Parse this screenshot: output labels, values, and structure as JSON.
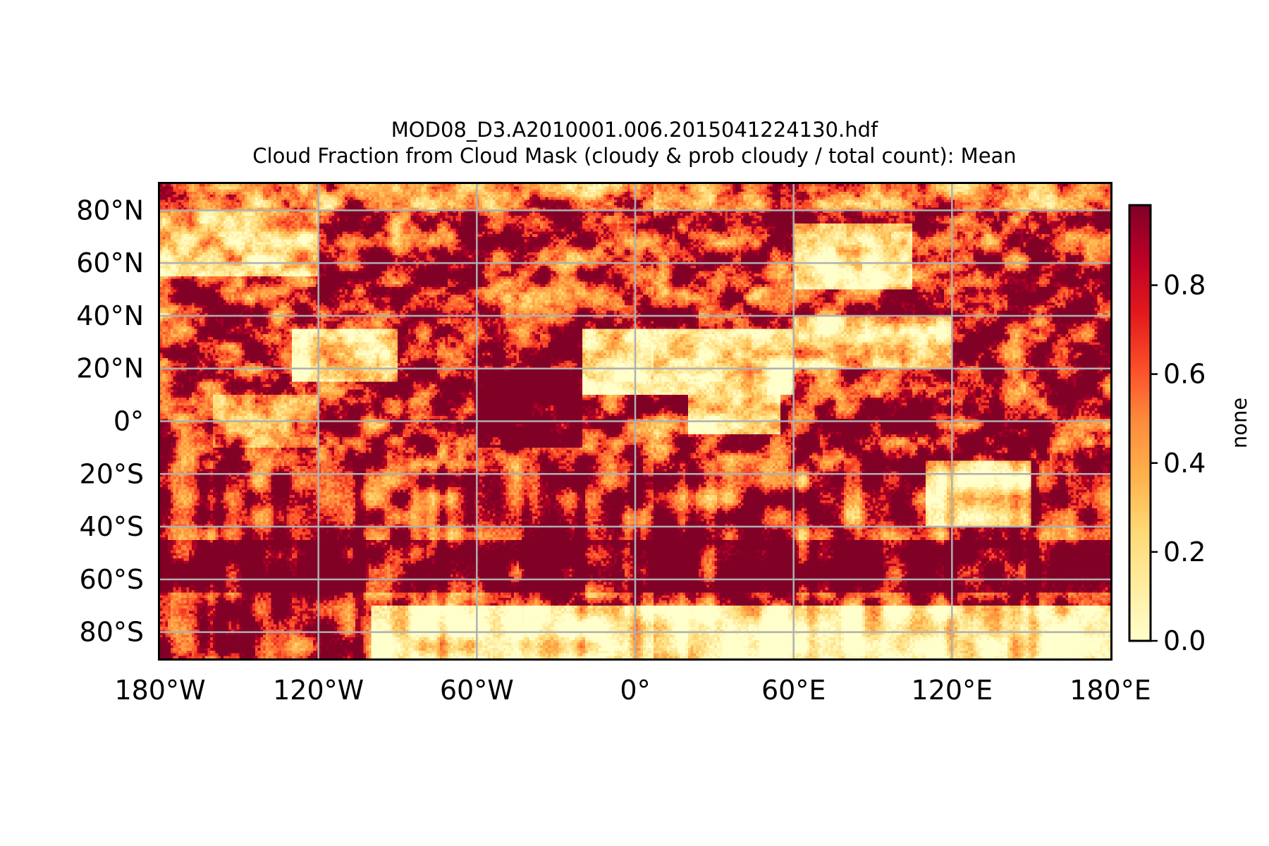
{
  "figure": {
    "title_line1": "MOD08_D3.A2010001.006.2015041224130.hdf",
    "title_line2": "Cloud Fraction from Cloud Mask (cloudy & prob cloudy / total count): Mean"
  },
  "chart_data": {
    "type": "heatmap",
    "projection": "plate carree (equirectangular)",
    "title": "MOD08_D3.A2010001.006.2015041224130.hdf\nCloud Fraction from Cloud Mask (cloudy & prob cloudy / total count): Mean",
    "xlim": [
      -180,
      180
    ],
    "ylim": [
      -90,
      90
    ],
    "grid": true,
    "x_ticks": [
      {
        "value": -180,
        "label": "180°W"
      },
      {
        "value": -120,
        "label": "120°W"
      },
      {
        "value": -60,
        "label": "60°W"
      },
      {
        "value": 0,
        "label": "0°"
      },
      {
        "value": 60,
        "label": "60°E"
      },
      {
        "value": 120,
        "label": "120°E"
      },
      {
        "value": 180,
        "label": "180°E"
      }
    ],
    "y_ticks": [
      {
        "value": 80,
        "label": "80°N"
      },
      {
        "value": 60,
        "label": "60°N"
      },
      {
        "value": 40,
        "label": "40°N"
      },
      {
        "value": 20,
        "label": "20°N"
      },
      {
        "value": 0,
        "label": "0°"
      },
      {
        "value": -20,
        "label": "20°S"
      },
      {
        "value": -40,
        "label": "40°S"
      },
      {
        "value": -60,
        "label": "60°S"
      },
      {
        "value": -80,
        "label": "80°S"
      }
    ],
    "colorbar": {
      "label": "none",
      "range": [
        0.0,
        0.98
      ],
      "ticks": [
        {
          "value": 0.0,
          "label": "0.0"
        },
        {
          "value": 0.2,
          "label": "0.2"
        },
        {
          "value": 0.4,
          "label": "0.4"
        },
        {
          "value": 0.6,
          "label": "0.6"
        },
        {
          "value": 0.8,
          "label": "0.8"
        }
      ],
      "colormap": "YlOrRd",
      "colormap_stops": [
        "#ffffcc",
        "#ffeda0",
        "#fed976",
        "#feb24c",
        "#fd8d3c",
        "#fc4e2a",
        "#e31a1c",
        "#bd0026",
        "#800026"
      ]
    },
    "regions": [
      {
        "lon": [
          -180,
          180
        ],
        "lat": [
          80,
          90
        ],
        "mean": 0.45
      },
      {
        "lon": [
          -180,
          -120
        ],
        "lat": [
          55,
          80
        ],
        "mean": 0.25
      },
      {
        "lon": [
          -160,
          -120
        ],
        "lat": [
          -10,
          10
        ],
        "mean": 0.45
      },
      {
        "lon": [
          -130,
          -90
        ],
        "lat": [
          15,
          35
        ],
        "mean": 0.2
      },
      {
        "lon": [
          -60,
          -20
        ],
        "lat": [
          -10,
          20
        ],
        "mean": 0.95
      },
      {
        "lon": [
          -20,
          60
        ],
        "lat": [
          10,
          35
        ],
        "mean": 0.08
      },
      {
        "lon": [
          20,
          55
        ],
        "lat": [
          -5,
          20
        ],
        "mean": 0.12
      },
      {
        "lon": [
          60,
          105
        ],
        "lat": [
          50,
          75
        ],
        "mean": 0.2
      },
      {
        "lon": [
          60,
          120
        ],
        "lat": [
          20,
          40
        ],
        "mean": 0.25
      },
      {
        "lon": [
          110,
          150
        ],
        "lat": [
          -40,
          -15
        ],
        "mean": 0.18
      },
      {
        "lon": [
          -180,
          180
        ],
        "lat": [
          -65,
          -45
        ],
        "mean": 0.95
      },
      {
        "lon": [
          -100,
          180
        ],
        "lat": [
          -90,
          -70
        ],
        "mean": 0.1
      }
    ]
  },
  "colors": {
    "grid": "#b0b0b0",
    "axes": "#000000",
    "background": "#ffffff",
    "missing_data": "#ffffff"
  }
}
